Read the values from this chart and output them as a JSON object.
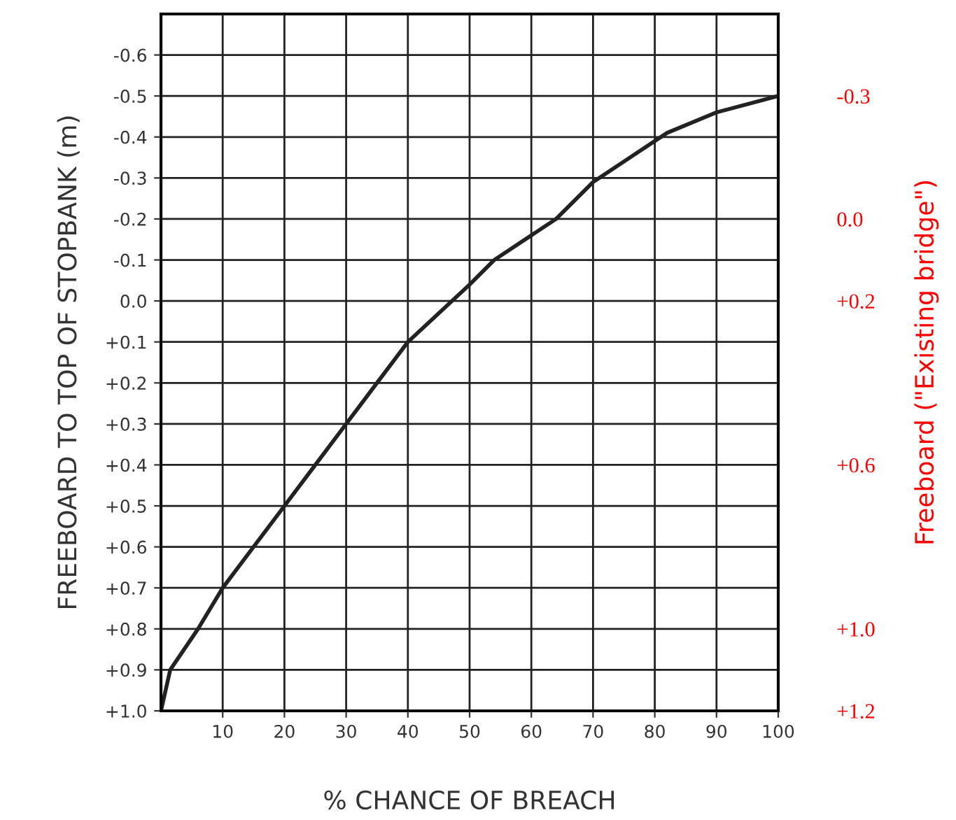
{
  "chart_data": {
    "type": "line",
    "xlabel": "% CHANCE OF BREACH",
    "ylabel": "FREEBOARD TO TOP OF STOPBANK (m)",
    "y2label": "Freeboard (\"Existing bridge\")",
    "x": [
      0,
      1.5,
      6,
      10,
      15,
      20,
      25,
      30,
      35,
      40,
      45,
      50,
      54,
      60,
      64,
      70,
      76,
      82,
      90,
      100
    ],
    "series": [
      {
        "color": "#222222",
        "values": [
          1.0,
          0.9,
          0.8,
          0.7,
          0.6,
          0.5,
          0.4,
          0.3,
          0.2,
          0.1,
          0.03,
          -0.04,
          -0.1,
          -0.16,
          -0.2,
          -0.29,
          -0.35,
          -0.41,
          -0.46,
          -0.5
        ]
      }
    ],
    "xlim": [
      0,
      100
    ],
    "xticks": [
      10,
      20,
      30,
      40,
      50,
      60,
      70,
      80,
      90,
      100
    ],
    "ylim": [
      1.0,
      -0.7
    ],
    "yticks": [
      {
        "value": -0.6,
        "label": "-0.6"
      },
      {
        "value": -0.5,
        "label": "-0.5"
      },
      {
        "value": -0.4,
        "label": "-0.4"
      },
      {
        "value": -0.3,
        "label": "-0.3"
      },
      {
        "value": -0.2,
        "label": "-0.2"
      },
      {
        "value": -0.1,
        "label": "-0.1"
      },
      {
        "value": 0.0,
        "label": "0.0"
      },
      {
        "value": 0.1,
        "label": "+0.1"
      },
      {
        "value": 0.2,
        "label": "+0.2"
      },
      {
        "value": 0.3,
        "label": "+0.3"
      },
      {
        "value": 0.4,
        "label": "+0.4"
      },
      {
        "value": 0.5,
        "label": "+0.5"
      },
      {
        "value": 0.6,
        "label": "+0.6"
      },
      {
        "value": 0.7,
        "label": "+0.7"
      },
      {
        "value": 0.8,
        "label": "+0.8"
      },
      {
        "value": 0.9,
        "label": "+0.9"
      },
      {
        "value": 1.0,
        "label": "+1.0"
      }
    ],
    "y2lim": [
      1.2,
      -0.5
    ],
    "y2ticks": [
      {
        "value": -0.3,
        "label": "-0.3"
      },
      {
        "value": 0.0,
        "label": "0.0"
      },
      {
        "value": 0.2,
        "label": "+0.2"
      },
      {
        "value": 0.6,
        "label": "+0.6"
      },
      {
        "value": 1.0,
        "label": "+1.0"
      },
      {
        "value": 1.2,
        "label": "+1.2"
      }
    ],
    "grid": true,
    "marker": "none",
    "line_style": "solid"
  }
}
